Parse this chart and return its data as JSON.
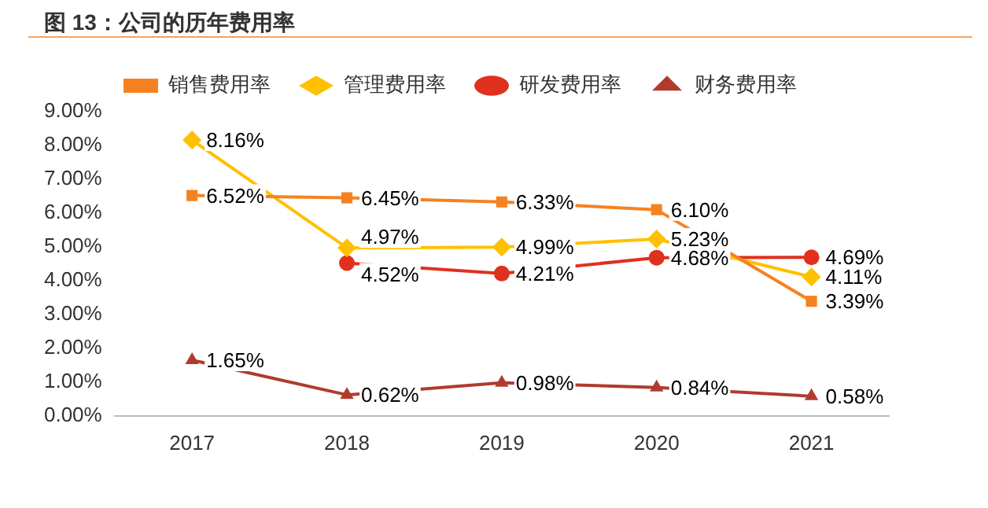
{
  "chart_data": {
    "type": "line",
    "title": "图 13：公司的历年费用率",
    "categories": [
      "2017",
      "2018",
      "2019",
      "2020",
      "2021"
    ],
    "series": [
      {
        "name": "销售费用率",
        "color": "#f58220",
        "marker": "square",
        "values": [
          6.52,
          6.45,
          6.33,
          6.1,
          3.39
        ],
        "value_labels": [
          "6.52%",
          "6.45%",
          "6.33%",
          "6.10%",
          "3.39%"
        ]
      },
      {
        "name": "管理费用率",
        "color": "#ffc000",
        "marker": "diamond",
        "values": [
          8.16,
          4.97,
          4.99,
          5.23,
          4.11
        ],
        "value_labels": [
          "8.16%",
          "4.97%",
          "4.99%",
          "5.23%",
          "4.11%"
        ]
      },
      {
        "name": "研发费用率",
        "color": "#e0301e",
        "marker": "circle",
        "values": [
          null,
          4.52,
          4.21,
          4.68,
          4.69
        ],
        "value_labels": [
          null,
          "4.52%",
          "4.21%",
          "4.68%",
          "4.69%"
        ]
      },
      {
        "name": "财务费用率",
        "color": "#b03a2e",
        "marker": "triangle",
        "values": [
          1.65,
          0.62,
          0.98,
          0.84,
          0.58
        ],
        "value_labels": [
          "1.65%",
          "0.62%",
          "0.98%",
          "0.84%",
          "0.58%"
        ]
      }
    ],
    "ylim": [
      0,
      9
    ],
    "yticks": [
      {
        "value": 0,
        "label": "0.00%"
      },
      {
        "value": 1,
        "label": "1.00%"
      },
      {
        "value": 2,
        "label": "2.00%"
      },
      {
        "value": 3,
        "label": "3.00%"
      },
      {
        "value": 4,
        "label": "4.00%"
      },
      {
        "value": 5,
        "label": "5.00%"
      },
      {
        "value": 6,
        "label": "6.00%"
      },
      {
        "value": 7,
        "label": "7.00%"
      },
      {
        "value": 8,
        "label": "8.00%"
      },
      {
        "value": 9,
        "label": "9.00%"
      }
    ],
    "grid": false,
    "legend": "top"
  }
}
